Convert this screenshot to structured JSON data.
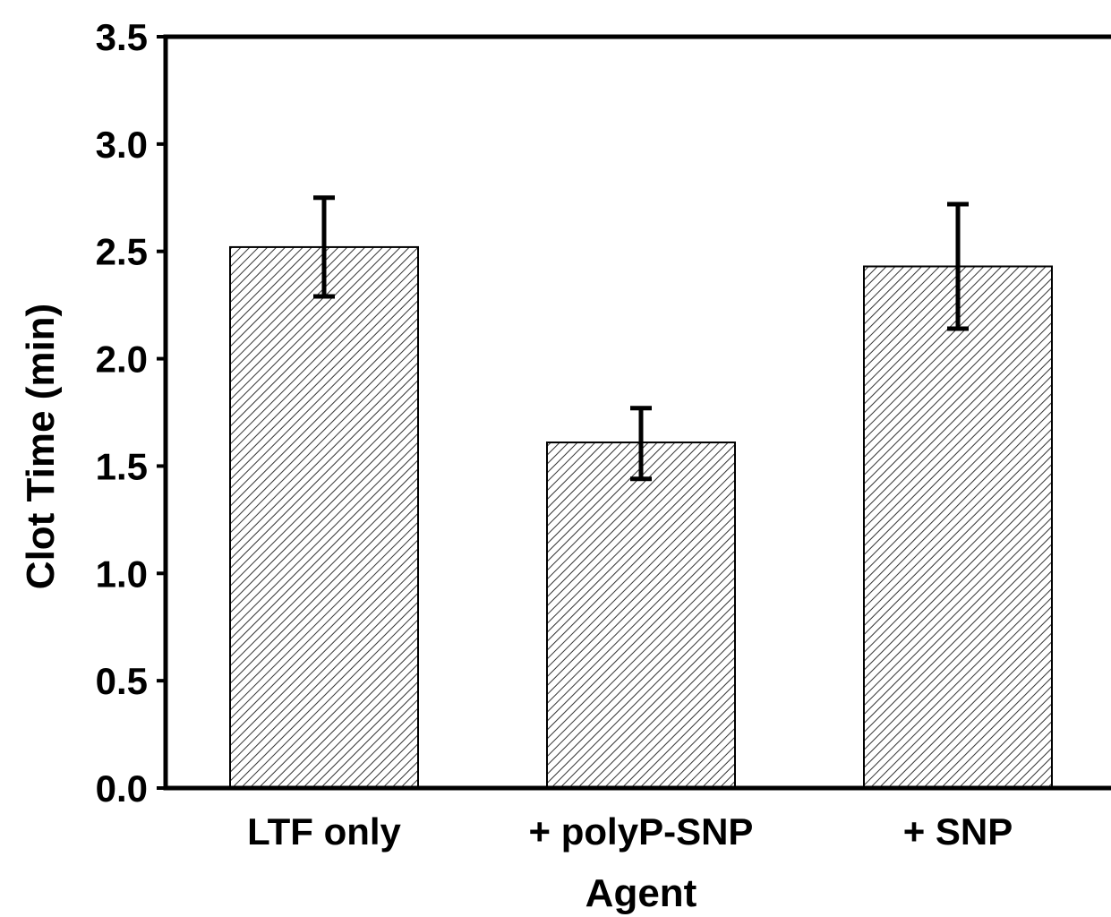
{
  "chart_data": {
    "type": "bar",
    "title": "",
    "xlabel": "Agent",
    "ylabel": "Clot Time (min)",
    "categories": [
      "LTF only",
      "+ polyP-SNP",
      "+ SNP"
    ],
    "values": [
      2.52,
      1.61,
      2.43
    ],
    "error_bars": [
      {
        "low": 2.29,
        "high": 2.75
      },
      {
        "low": 1.44,
        "high": 1.77
      },
      {
        "low": 2.14,
        "high": 2.72
      }
    ],
    "ylim": [
      0.0,
      3.5
    ],
    "y_ticks": [
      "0.0",
      "0.5",
      "1.0",
      "1.5",
      "2.0",
      "2.5",
      "3.0",
      "3.5"
    ],
    "grid": false,
    "legend": "none",
    "bar_fill": "diagonal-hatch",
    "colors": {
      "bar_outline": "#000000",
      "hatch": "#333333",
      "bar_background": "#ffffff",
      "axis": "#000000"
    }
  }
}
